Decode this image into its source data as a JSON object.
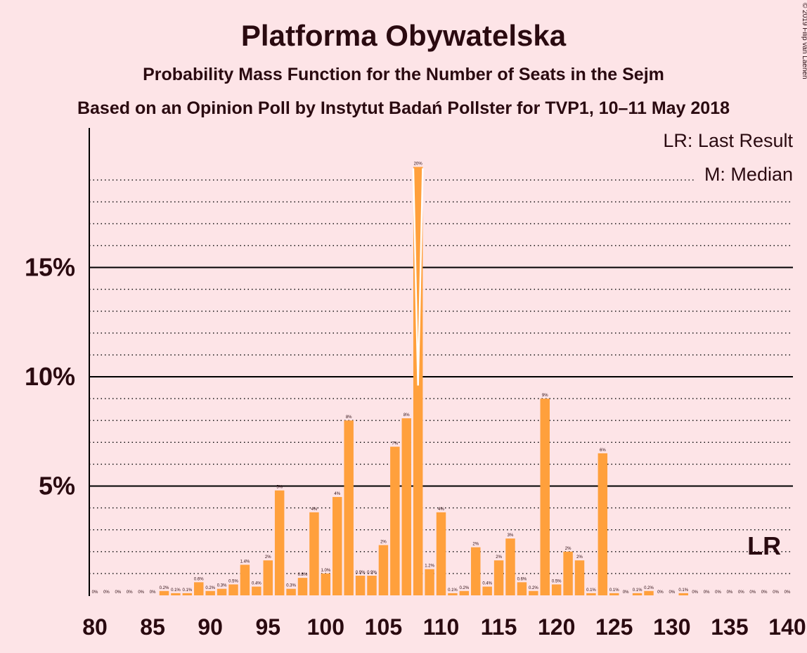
{
  "chart_data": {
    "type": "bar",
    "title": "Platforma Obywatelska",
    "subtitle": "Probability Mass Function for the Number of Seats in the Sejm",
    "subtitle2": "Based on an Opinion Poll by Instytut Badań Pollster for TVP1, 10–11 May 2018",
    "copyright": "© 2019 Filip van Laenen",
    "legend": {
      "lr": "LR: Last Result",
      "m": "M: Median",
      "placement": "top-right"
    },
    "xlabel": "",
    "ylabel": "",
    "xlim": [
      80,
      140
    ],
    "ylim": [
      0,
      21
    ],
    "x_ticks": [
      80,
      85,
      90,
      95,
      100,
      105,
      110,
      115,
      120,
      125,
      130,
      135,
      140
    ],
    "y_ticks": [
      {
        "value": 5,
        "label": "5%"
      },
      {
        "value": 10,
        "label": "10%"
      },
      {
        "value": 15,
        "label": "15%"
      }
    ],
    "grid": "dotted minor every 1%, solid at 5%",
    "color": "#ffa03c",
    "median": 108,
    "last_result": 138,
    "lr_label": "LR",
    "x": [
      80,
      81,
      82,
      83,
      84,
      85,
      86,
      87,
      88,
      89,
      90,
      91,
      92,
      93,
      94,
      95,
      96,
      97,
      98,
      99,
      100,
      101,
      102,
      103,
      104,
      105,
      106,
      107,
      108,
      109,
      110,
      111,
      112,
      113,
      114,
      115,
      116,
      117,
      118,
      119,
      120,
      121,
      122,
      123,
      124,
      125,
      126,
      127,
      128,
      129,
      130,
      131,
      132,
      133,
      134,
      135,
      136,
      137,
      138,
      139,
      140
    ],
    "values": [
      0,
      0,
      0,
      0,
      0,
      0,
      0.2,
      0.1,
      0.1,
      0.6,
      0.2,
      0.3,
      0.5,
      1.4,
      0.4,
      1.6,
      4.8,
      0.3,
      0.8,
      3.8,
      1.0,
      4.5,
      8.0,
      0.9,
      0.9,
      2.3,
      6.8,
      8.1,
      19.6,
      1.2,
      3.8,
      0.1,
      0.2,
      2.2,
      0.4,
      1.6,
      2.6,
      0.6,
      0.2,
      9.0,
      0.5,
      2.0,
      1.6,
      0.1,
      6.5,
      0.1,
      0,
      0.1,
      0.2,
      0,
      0,
      0.1,
      0,
      0,
      0,
      0,
      0,
      0,
      0,
      0,
      0
    ],
    "labels": [
      "0%",
      "0%",
      "0%",
      "0%",
      "0%",
      "0%",
      "0.2%",
      "0.1%",
      "0.1%",
      "0.6%",
      "0.2%",
      "0.3%",
      "0.5%",
      "1.4%",
      "0.4%",
      "2%",
      "5%",
      "0.3%",
      "0.8%",
      "4%",
      "1.0%",
      "4%",
      "8%",
      "0.9%",
      "0.9%",
      "2%",
      "7%",
      "8%",
      "20%",
      "1.2%",
      "4%",
      "0.1%",
      "0.2%",
      "2%",
      "0.4%",
      "2%",
      "3%",
      "0.6%",
      "0.2%",
      "9%",
      "0.5%",
      "2%",
      "2%",
      "0.1%",
      "6%",
      "0.1%",
      "0%",
      "0.1%",
      "0.2%",
      "0%",
      "0%",
      "0.1%",
      "0%",
      "0%",
      "0%",
      "0%",
      "0%",
      "0%",
      "0%",
      "0%",
      "0%"
    ]
  }
}
